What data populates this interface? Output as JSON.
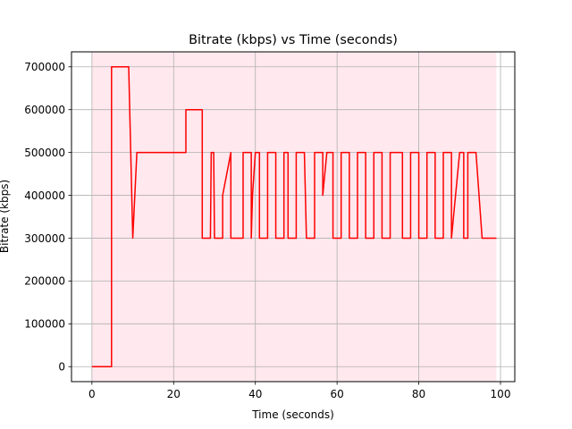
{
  "chart_data": {
    "type": "line",
    "title": "Bitrate (kbps) vs Time (seconds)",
    "xlabel": "Time (seconds)",
    "ylabel": "Bitrate (kbps)",
    "xlim": [
      -5,
      103.5
    ],
    "ylim": [
      -35000,
      735000
    ],
    "xticks": [
      0,
      20,
      40,
      60,
      80,
      100
    ],
    "yticks": [
      0,
      100000,
      200000,
      300000,
      400000,
      500000,
      600000,
      700000
    ],
    "xtick_labels": [
      "0",
      "20",
      "40",
      "60",
      "80",
      "100"
    ],
    "ytick_labels": [
      "0",
      "100000",
      "200000",
      "300000",
      "400000",
      "500000",
      "600000",
      "700000"
    ],
    "grid": true,
    "shaded_region": {
      "x": [
        0,
        99
      ],
      "color": "#ffe8ee"
    },
    "series": [
      {
        "color": "#ff0000",
        "x": [
          0,
          4.8,
          4.8,
          9,
          10,
          11,
          11,
          23,
          23,
          27,
          27,
          29,
          29.2,
          29.8,
          30,
          32,
          32,
          34,
          34,
          37,
          37,
          39,
          39,
          39.3,
          40,
          41,
          41,
          43,
          43,
          45,
          45,
          47,
          47,
          48,
          48,
          50,
          50,
          52,
          52.5,
          54.5,
          54.5,
          56.5,
          56.5,
          57.5,
          59,
          59,
          61,
          61,
          63,
          63,
          65,
          65,
          67,
          67,
          69,
          69,
          71,
          71,
          73,
          73,
          76,
          76,
          78,
          78,
          80,
          80,
          82,
          82,
          84,
          84,
          86,
          86,
          88,
          88,
          89,
          90,
          91,
          91,
          92,
          92,
          94,
          95.5,
          99
        ],
        "y": [
          0,
          0,
          700000,
          700000,
          300000,
          500000,
          500000,
          500000,
          600000,
          600000,
          300000,
          300000,
          500000,
          500000,
          300000,
          300000,
          400000,
          500000,
          300000,
          300000,
          500000,
          500000,
          300000,
          400000,
          500000,
          500000,
          300000,
          300000,
          500000,
          500000,
          300000,
          300000,
          500000,
          500000,
          300000,
          300000,
          500000,
          500000,
          300000,
          300000,
          500000,
          500000,
          400000,
          500000,
          500000,
          300000,
          300000,
          500000,
          500000,
          300000,
          300000,
          500000,
          500000,
          300000,
          300000,
          500000,
          500000,
          300000,
          300000,
          500000,
          500000,
          300000,
          300000,
          500000,
          500000,
          300000,
          300000,
          500000,
          500000,
          300000,
          300000,
          500000,
          500000,
          300000,
          400000,
          500000,
          500000,
          300000,
          300000,
          500000,
          500000,
          300000,
          300000
        ]
      }
    ]
  }
}
